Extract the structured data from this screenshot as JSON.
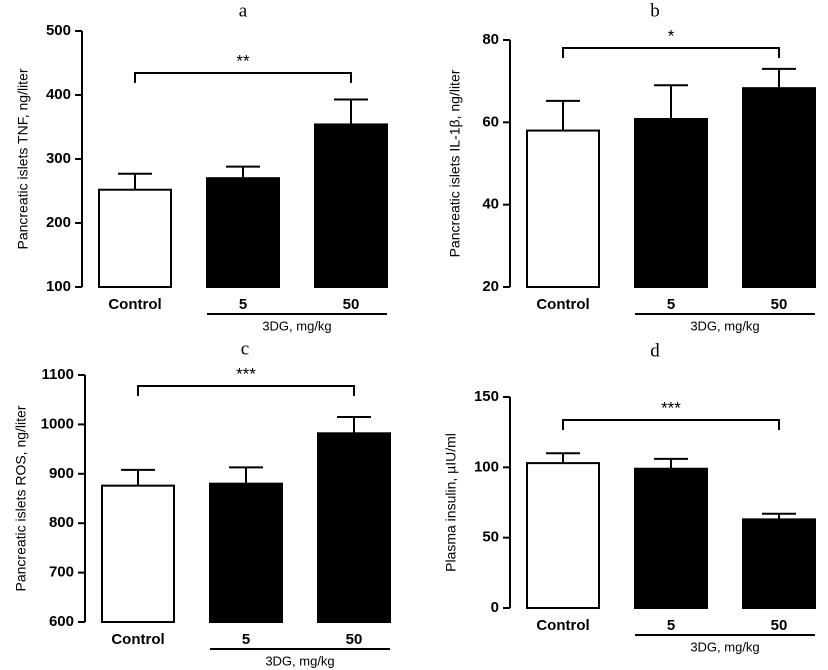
{
  "chart_data": [
    {
      "type": "bar",
      "title": "a",
      "ylabel": "Pancreatic islets TNF, ng/liter",
      "xlabel": "3DG, mg/kg",
      "categories": [
        "Control",
        "5",
        "50"
      ],
      "values": [
        252,
        270,
        354
      ],
      "errors": [
        25,
        18,
        39
      ],
      "colors": [
        "#ffffff",
        "#000000",
        "#000000"
      ],
      "annotation": "**",
      "ylim": [
        100,
        500
      ],
      "yticks": [
        100,
        200,
        300,
        400,
        500
      ]
    },
    {
      "type": "bar",
      "title": "b",
      "ylabel": "Pancreatic islets IL-1β, ng/liter",
      "xlabel": "3DG, mg/kg",
      "categories": [
        "Control",
        "5",
        "50"
      ],
      "values": [
        58,
        60.8,
        68.3
      ],
      "errors": [
        7.2,
        8.2,
        4.7
      ],
      "colors": [
        "#ffffff",
        "#000000",
        "#000000"
      ],
      "annotation": "*",
      "ylim": [
        20,
        80
      ],
      "yticks": [
        20,
        40,
        60,
        80
      ]
    },
    {
      "type": "bar",
      "title": "c",
      "ylabel": "Pancreatic islets ROS, ng/liter",
      "xlabel": "3DG, mg/kg",
      "categories": [
        "Control",
        "5",
        "50"
      ],
      "values": [
        876,
        880,
        982
      ],
      "errors": [
        32,
        33,
        33
      ],
      "colors": [
        "#ffffff",
        "#000000",
        "#000000"
      ],
      "annotation": "***",
      "ylim": [
        600,
        1100
      ],
      "yticks": [
        600,
        700,
        800,
        900,
        1000,
        1100
      ]
    },
    {
      "type": "bar",
      "title": "d",
      "ylabel": "Plasma insulin, µIU/ml",
      "xlabel": "3DG, mg/kg",
      "categories": [
        "Control",
        "5",
        "50"
      ],
      "values": [
        103,
        99,
        63
      ],
      "errors": [
        7,
        7,
        4
      ],
      "colors": [
        "#ffffff",
        "#000000",
        "#000000"
      ],
      "annotation": "***",
      "ylim": [
        0,
        150
      ],
      "yticks": [
        0,
        50,
        100,
        150
      ]
    }
  ]
}
